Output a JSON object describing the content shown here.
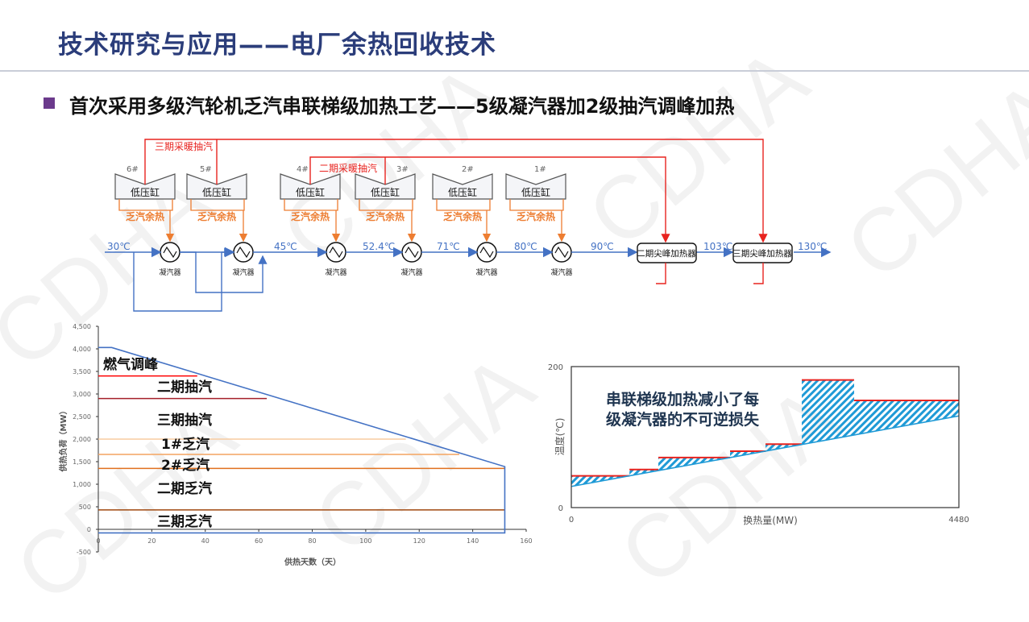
{
  "header": {
    "title": "技术研究与应用——电厂余热回收技术",
    "subtitle": "首次采用多级汽轮机乏汽串联梯级加热工艺——5级凝汽器加2级抽汽调峰加热"
  },
  "watermark": "CDHA",
  "diagram": {
    "turbines": [
      {
        "id": "6#",
        "label": "低压缸"
      },
      {
        "id": "5#",
        "label": "低压缸"
      },
      {
        "id": "4#",
        "label": "低压缸"
      },
      {
        "id": "3#",
        "label": "低压缸"
      },
      {
        "id": "2#",
        "label": "低压缸"
      },
      {
        "id": "1#",
        "label": "低压缸"
      }
    ],
    "exhaust_label": "乏汽余热",
    "condenser_label": "凝汽器",
    "extraction_3": "三期采暖抽汽",
    "extraction_2": "二期采暖抽汽",
    "peak_heater_2": "二期尖峰加热器",
    "peak_heater_3": "三期尖峰加热器",
    "temps": [
      "30℃",
      "45℃",
      "52.4℃",
      "71℃",
      "80℃",
      "90℃",
      "103℃",
      "130℃"
    ],
    "colors": {
      "steam": "#e8231f",
      "exhaust": "#ed7d31",
      "water": "#4472c4"
    }
  },
  "chart_data": [
    {
      "type": "line",
      "title": "",
      "xlabel": "供热天数（天）",
      "ylabel": "供热负荷（MW）",
      "xlim": [
        0,
        160
      ],
      "ylim": [
        -500,
        4500
      ],
      "xticks": [
        "0",
        "20",
        "40",
        "60",
        "80",
        "100",
        "120",
        "140",
        "160"
      ],
      "yticks": [
        "-500",
        "0",
        "500",
        "1,000",
        "1,500",
        "2,000",
        "2,500",
        "3,000",
        "3,500",
        "4,000",
        "4,500"
      ],
      "load_curve": {
        "x": [
          0,
          5,
          152,
          152,
          0
        ],
        "y": [
          4030,
          4030,
          1390,
          -80,
          -80
        ],
        "color": "#4472c4"
      },
      "levels": [
        {
          "y": 3400,
          "x_end": 37,
          "color": "#ff0000"
        },
        {
          "y": 2900,
          "x_end": 63,
          "color": "#a5202a"
        },
        {
          "y": 2000,
          "x_end": 115,
          "color": "#f8cba0"
        },
        {
          "y": 1660,
          "x_end": 135,
          "color": "#f4a460"
        },
        {
          "y": 1350,
          "x_end": 152,
          "color": "#e0701e"
        },
        {
          "y": 430,
          "x_end": 152,
          "color": "#a0480f"
        }
      ],
      "annotations": [
        "燃气调峰",
        "二期抽汽",
        "三期抽汽",
        "1#乏汽",
        "2#乏汽",
        "二期乏汽",
        "三期乏汽"
      ]
    },
    {
      "type": "area",
      "xlabel": "换热量(MW)",
      "ylabel": "温度(℃)",
      "xlim": [
        0,
        4480
      ],
      "ylim": [
        0,
        200
      ],
      "xticks": [
        "0",
        "4480"
      ],
      "yticks": [
        "0",
        "200"
      ],
      "water_line": {
        "x": [
          0,
          4480
        ],
        "y": [
          30,
          130
        ],
        "color": "#1f9ad6"
      },
      "steam_steps": [
        {
          "x0": 0,
          "x1": 672,
          "y": 45
        },
        {
          "x0": 672,
          "x1": 1006,
          "y": 54
        },
        {
          "x0": 1006,
          "x1": 1835,
          "y": 71
        },
        {
          "x0": 1835,
          "x1": 2245,
          "y": 80
        },
        {
          "x0": 2245,
          "x1": 2664,
          "y": 90
        },
        {
          "x0": 2664,
          "x1": 3269,
          "y": 181
        },
        {
          "x0": 3269,
          "x1": 4480,
          "y": 152
        }
      ],
      "step_color": "#e8231f",
      "annotation": [
        "串联梯级加热减小了每",
        "级凝汽器的不可逆损失"
      ]
    }
  ]
}
